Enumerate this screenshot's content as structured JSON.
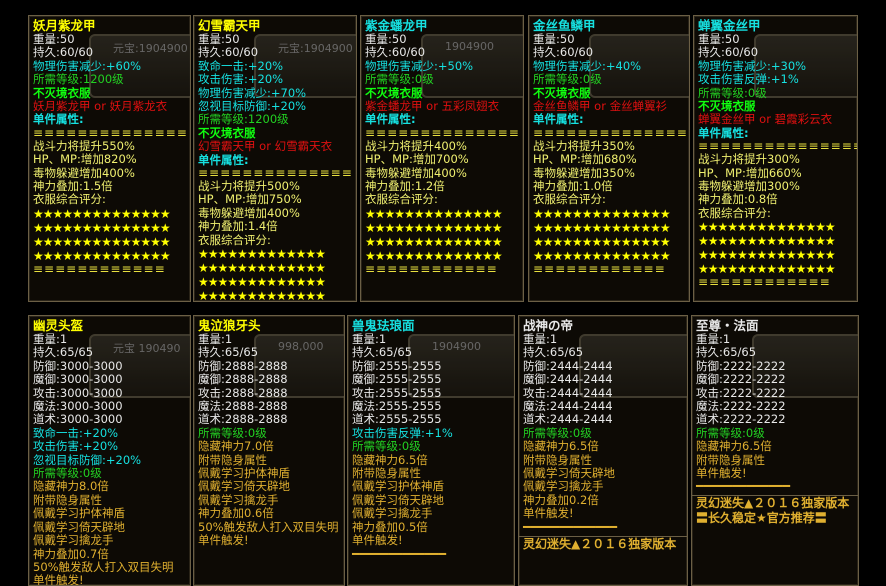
{
  "colors": {
    "white": "#e8e8e8",
    "yellow": "#ffff00",
    "cyan": "#16e0e0",
    "green": "#22d022",
    "red": "#e01010",
    "gold": "#e0b030"
  },
  "top_panels": [
    {
      "title": "妖月紫龙甲",
      "title_color": "yellow",
      "watermark": "元宝:1904900",
      "lines": [
        [
          "重量:50",
          "white"
        ],
        [
          "持久:60/60",
          "white"
        ],
        [
          "物理伤害减少:+60%",
          "cyan"
        ],
        [
          "所需等级:1200级",
          "green"
        ],
        [
          "不灭境衣服",
          "lime"
        ],
        [
          "妖月紫龙甲 or 妖月紫龙衣",
          "red"
        ],
        [
          "单件属性:",
          "cyanb"
        ],
        [
          "≡≡≡≡≡≡≡≡≡≡≡≡≡≡",
          "eq"
        ],
        [
          "战斗力将提升550%",
          "pale"
        ],
        [
          "HP、MP:增加820%",
          "pale"
        ],
        [
          "毒物躲避增加400%",
          "pale"
        ],
        [
          "神力叠加:1.5倍",
          "pale"
        ],
        [
          "衣服综合评分:",
          "pale"
        ]
      ],
      "stars": [
        "★★★★★★★★★★★★★★",
        "★★★★★★★★★★★★★★",
        "★★★★★★★★★★★★★★",
        "★★★★★★★★★★★★★★"
      ],
      "end": "≡≡≡≡≡≡≡≡≡≡≡≡"
    },
    {
      "title": "幻雪霸天甲",
      "title_color": "yellow",
      "watermark": "元宝:1904900",
      "lines": [
        [
          "重量:50",
          "white"
        ],
        [
          "持久:60/60",
          "white"
        ],
        [
          "致命一击:+20%",
          "cyan"
        ],
        [
          "攻击伤害:+20%",
          "cyan"
        ],
        [
          "物理伤害减少:+70%",
          "cyan"
        ],
        [
          "忽视目标防御:+20%",
          "cyan"
        ],
        [
          "所需等级:1200级",
          "green"
        ],
        [
          "不灭境衣服",
          "lime"
        ],
        [
          "幻雪霸天甲 or 幻雪霸天衣",
          "red"
        ],
        [
          "单件属性:",
          "cyanb"
        ],
        [
          "≡≡≡≡≡≡≡≡≡≡≡≡≡≡",
          "eq"
        ],
        [
          "战斗力将提升500%",
          "pale"
        ],
        [
          "HP、MP:增加750%",
          "pale"
        ],
        [
          "毒物躲避增加400%",
          "pale"
        ],
        [
          "神力叠加:1.4倍",
          "pale"
        ],
        [
          "衣服综合评分:",
          "pale"
        ]
      ],
      "stars": [
        "★★★★★★★★★★★★★",
        "★★★★★★★★★★★★★",
        "★★★★★★★★★★★★★",
        "★★★★★★★★★★★★★"
      ],
      "end": "≡≡≡≡≡≡≡≡≡≡≡≡"
    },
    {
      "title": "紫金蟠龙甲",
      "title_color": "cyan",
      "watermark": "1904900",
      "lines": [
        [
          "重量:50",
          "white"
        ],
        [
          "持久:60/60",
          "white"
        ],
        [
          "物理伤害减少:+50%",
          "cyan"
        ],
        [
          "所需等级:0级",
          "green"
        ],
        [
          "不灭境衣服",
          "lime"
        ],
        [
          "紫金蟠龙甲 or 五彩凤翅衣",
          "red"
        ],
        [
          "单件属性:",
          "cyanb"
        ],
        [
          "≡≡≡≡≡≡≡≡≡≡≡≡≡≡",
          "eq"
        ],
        [
          "战斗力将提升400%",
          "pale"
        ],
        [
          "HP、MP:增加700%",
          "pale"
        ],
        [
          "毒物躲避增加400%",
          "pale"
        ],
        [
          "神力叠加:1.2倍",
          "pale"
        ],
        [
          "衣服综合评分:",
          "pale"
        ]
      ],
      "stars": [
        "★★★★★★★★★★★★★★",
        "★★★★★★★★★★★★★★",
        "★★★★★★★★★★★★★★",
        "★★★★★★★★★★★★★★"
      ],
      "end": "≡≡≡≡≡≡≡≡≡≡≡≡"
    },
    {
      "title": "金丝鱼鳞甲",
      "title_color": "cyan",
      "watermark": "",
      "lines": [
        [
          "重量:50",
          "white"
        ],
        [
          "持久:60/60",
          "white"
        ],
        [
          "物理伤害减少:+40%",
          "cyan"
        ],
        [
          "所需等级:0级",
          "green"
        ],
        [
          "不灭境衣服",
          "lime"
        ],
        [
          "金丝鱼鳞甲 or 金丝蝉翼衫",
          "red"
        ],
        [
          "单件属性:",
          "cyanb"
        ],
        [
          "≡≡≡≡≡≡≡≡≡≡≡≡≡≡",
          "eq"
        ],
        [
          "战斗力将提升350%",
          "pale"
        ],
        [
          "HP、MP:增加680%",
          "pale"
        ],
        [
          "毒物躲避增加350%",
          "pale"
        ],
        [
          "神力叠加:1.0倍",
          "pale"
        ],
        [
          "衣服综合评分:",
          "pale"
        ]
      ],
      "stars": [
        "★★★★★★★★★★★★★★",
        "★★★★★★★★★★★★★★",
        "★★★★★★★★★★★★★★",
        "★★★★★★★★★★★★★★"
      ],
      "end": "≡≡≡≡≡≡≡≡≡≡≡≡"
    },
    {
      "title": "蝉翼金丝甲",
      "title_color": "cyan",
      "watermark": "",
      "lines": [
        [
          "重量:50",
          "white"
        ],
        [
          "持久:60/60",
          "white"
        ],
        [
          "物理伤害减少:+30%",
          "cyan"
        ],
        [
          "攻击伤害反弹:+1%",
          "cyan"
        ],
        [
          "所需等级:0级",
          "green"
        ],
        [
          "不灭境衣服",
          "lime"
        ],
        [
          "蝉翼金丝甲 or 碧霞彩云衣",
          "red"
        ],
        [
          "单件属性:",
          "cyanb"
        ],
        [
          "≡≡≡≡≡≡≡≡≡≡≡≡≡≡≡",
          "eq"
        ],
        [
          "战斗力将提升300%",
          "pale"
        ],
        [
          "HP、MP:增加660%",
          "pale"
        ],
        [
          "毒物躲避增加300%",
          "pale"
        ],
        [
          "神力叠加:0.8倍",
          "pale"
        ],
        [
          "衣服综合评分:",
          "pale"
        ]
      ],
      "stars": [
        "★★★★★★★★★★★★★★",
        "★★★★★★★★★★★★★★",
        "★★★★★★★★★★★★★★",
        "★★★★★★★★★★★★★★"
      ],
      "end": "≡≡≡≡≡≡≡≡≡≡≡≡"
    }
  ],
  "bottom_panels": [
    {
      "title": "幽灵头盔",
      "title_color": "yellow",
      "watermark": "元宝 190490",
      "lines": [
        [
          "重量:1",
          "white"
        ],
        [
          "持久:65/65",
          "white"
        ],
        [
          "防御:3000-3000",
          "white"
        ],
        [
          "魔御:3000-3000",
          "white"
        ],
        [
          "攻击:3000-3000",
          "white"
        ],
        [
          "魔法:3000-3000",
          "white"
        ],
        [
          "道术:3000-3000",
          "white"
        ],
        [
          "致命一击:+20%",
          "cyan"
        ],
        [
          "攻击伤害:+20%",
          "cyan"
        ],
        [
          "忽视目标防御:+20%",
          "cyan"
        ],
        [
          "所需等级:0级",
          "green"
        ],
        [
          "隐藏神力8.0倍",
          "gold"
        ],
        [
          "附带隐身属性",
          "gold"
        ],
        [
          "佩戴学习护体神盾",
          "gold"
        ],
        [
          "佩戴学习倚天辟地",
          "gold"
        ],
        [
          "佩戴学习擒龙手",
          "gold"
        ],
        [
          "神力叠加0.7倍",
          "gold"
        ],
        [
          "50%触发敌人打入双目失明",
          "gold"
        ],
        [
          "单件触发!",
          "gold"
        ]
      ],
      "bar": "",
      "footer": []
    },
    {
      "title": "鬼泣狼牙头",
      "title_color": "yellow",
      "watermark": "998,000",
      "lines": [
        [
          "重量:1",
          "white"
        ],
        [
          "持久:65/65",
          "white"
        ],
        [
          "防御:2888-2888",
          "white"
        ],
        [
          "魔御:2888-2888",
          "white"
        ],
        [
          "攻击:2888-2888",
          "white"
        ],
        [
          "魔法:2888-2888",
          "white"
        ],
        [
          "道术:2888-2888",
          "white"
        ],
        [
          "所需等级:0级",
          "green"
        ],
        [
          "隐藏神力7.0倍",
          "gold"
        ],
        [
          "附带隐身属性",
          "gold"
        ],
        [
          "佩戴学习护体神盾",
          "gold"
        ],
        [
          "佩戴学习倚天辟地",
          "gold"
        ],
        [
          "佩戴学习擒龙手",
          "gold"
        ],
        [
          "神力叠加0.6倍",
          "gold"
        ],
        [
          "50%触发敌人打入双目失明",
          "gold"
        ],
        [
          "单件触发!",
          "gold"
        ]
      ],
      "bar": "",
      "footer": []
    },
    {
      "title": "兽鬼珐琅面",
      "title_color": "cyan",
      "watermark": "1904900",
      "lines": [
        [
          "重量:1",
          "white"
        ],
        [
          "持久:65/65",
          "white"
        ],
        [
          "防御:2555-2555",
          "white"
        ],
        [
          "魔御:2555-2555",
          "white"
        ],
        [
          "攻击:2555-2555",
          "white"
        ],
        [
          "魔法:2555-2555",
          "white"
        ],
        [
          "道术:2555-2555",
          "white"
        ],
        [
          "攻击伤害反弹:+1%",
          "cyan"
        ],
        [
          "所需等级:0级",
          "green"
        ],
        [
          "隐藏神力6.5倍",
          "gold"
        ],
        [
          "附带隐身属性",
          "gold"
        ],
        [
          "佩戴学习护体神盾",
          "gold"
        ],
        [
          "佩戴学习倚天辟地",
          "gold"
        ],
        [
          "佩戴学习擒龙手",
          "gold"
        ],
        [
          "神力叠加0.5倍",
          "gold"
        ],
        [
          "单件触发!",
          "gold"
        ]
      ],
      "bar": "━━━━━━━━━━━━━",
      "footer": []
    },
    {
      "title": "战神の帝",
      "title_color": "white",
      "watermark": "",
      "lines": [
        [
          "重量:1",
          "white"
        ],
        [
          "持久:65/65",
          "white"
        ],
        [
          "防御:2444-2444",
          "white"
        ],
        [
          "魔御:2444-2444",
          "white"
        ],
        [
          "攻击:2444-2444",
          "white"
        ],
        [
          "魔法:2444-2444",
          "white"
        ],
        [
          "道术:2444-2444",
          "white"
        ],
        [
          "所需等级:0级",
          "green"
        ],
        [
          "隐藏神力6.5倍",
          "gold"
        ],
        [
          "附带隐身属性",
          "gold"
        ],
        [
          "佩戴学习倚天辟地",
          "gold"
        ],
        [
          "佩戴学习擒龙手",
          "gold"
        ],
        [
          "神力叠加0.2倍",
          "gold"
        ],
        [
          "单件触发!",
          "gold"
        ]
      ],
      "bar": "━━━━━━━━━━━━━",
      "footer": [
        "灵幻迷失▲２０１６独家版本"
      ]
    },
    {
      "title": "至尊・法面",
      "title_color": "white",
      "watermark": "",
      "lines": [
        [
          "重量:1",
          "white"
        ],
        [
          "持久:65/65",
          "white"
        ],
        [
          "防御:2222-2222",
          "white"
        ],
        [
          "魔御:2222-2222",
          "white"
        ],
        [
          "攻击:2222-2222",
          "white"
        ],
        [
          "魔法:2222-2222",
          "white"
        ],
        [
          "道术:2222-2222",
          "white"
        ],
        [
          "所需等级:0级",
          "green"
        ],
        [
          "隐藏神力6.5倍",
          "gold"
        ],
        [
          "附带隐身属性",
          "gold"
        ],
        [
          "单件触发!",
          "gold"
        ]
      ],
      "bar": "━━━━━━━━━━━━━",
      "footer": [
        "灵幻迷失▲２０１６独家版本",
        "〓长久稳定★官方推荐〓"
      ]
    }
  ]
}
